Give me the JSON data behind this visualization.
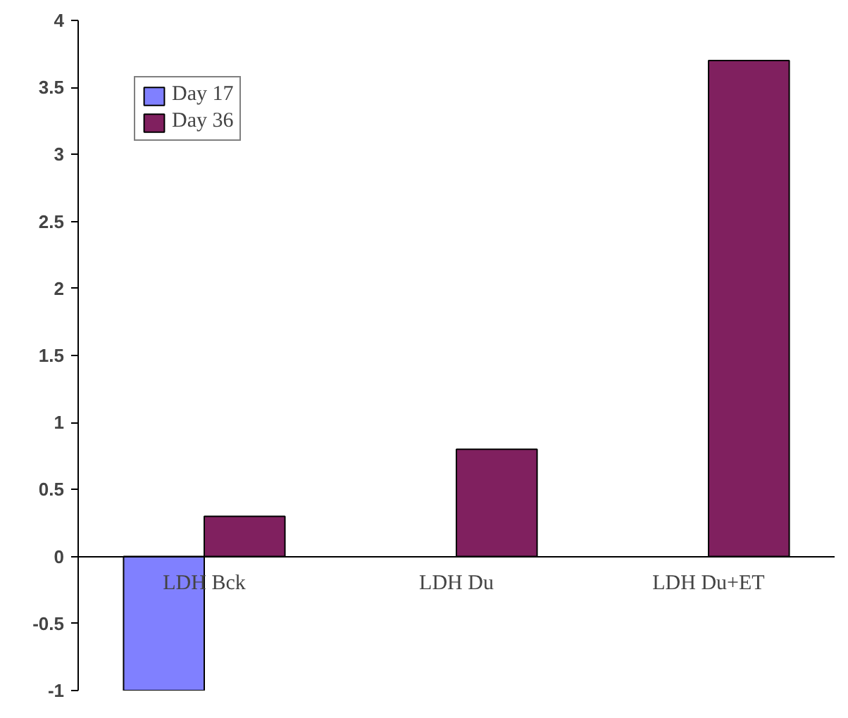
{
  "chart_data": {
    "type": "bar",
    "categories": [
      "LDH Bck",
      "LDH Du",
      "LDH Du+ET"
    ],
    "series": [
      {
        "name": "Day 17",
        "color": "#8080ff",
        "values": [
          -1,
          null,
          null
        ]
      },
      {
        "name": "Day 36",
        "color": "#80205f",
        "values": [
          0.3,
          0.8,
          3.7
        ]
      }
    ],
    "ylim": [
      -1,
      4
    ],
    "yticks": [
      {
        "value": -1,
        "label": "-1"
      },
      {
        "value": -0.5,
        "label": "-0.5"
      },
      0,
      0.5,
      1,
      1.5,
      2,
      2.5,
      3,
      3.5,
      4
    ],
    "grid": false,
    "legend": "top left"
  }
}
